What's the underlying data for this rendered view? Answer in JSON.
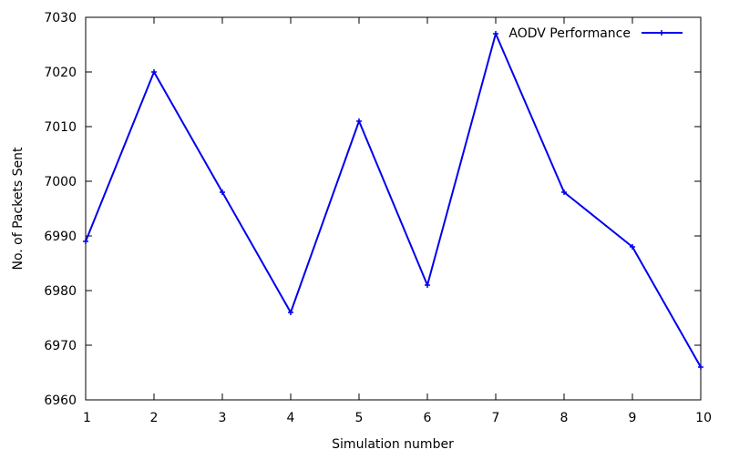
{
  "chart_data": {
    "type": "line",
    "title": "",
    "xlabel": "Simulation number",
    "ylabel": "No. of Packets Sent",
    "xlim": [
      1,
      10
    ],
    "ylim": [
      6960,
      7030
    ],
    "x_ticks": [
      1,
      2,
      3,
      4,
      5,
      6,
      7,
      8,
      9,
      10
    ],
    "y_ticks": [
      6960,
      6970,
      6980,
      6990,
      7000,
      7010,
      7020,
      7030
    ],
    "grid": false,
    "legend_position": "top-right",
    "series": [
      {
        "name": "AODV Performance",
        "color": "#0000ee",
        "marker": "plus",
        "x": [
          1,
          2,
          3,
          4,
          5,
          6,
          7,
          8,
          9,
          10
        ],
        "y": [
          6989,
          7020,
          6998,
          6976,
          7011,
          6981,
          7027,
          6998,
          6988,
          6966
        ]
      }
    ]
  }
}
